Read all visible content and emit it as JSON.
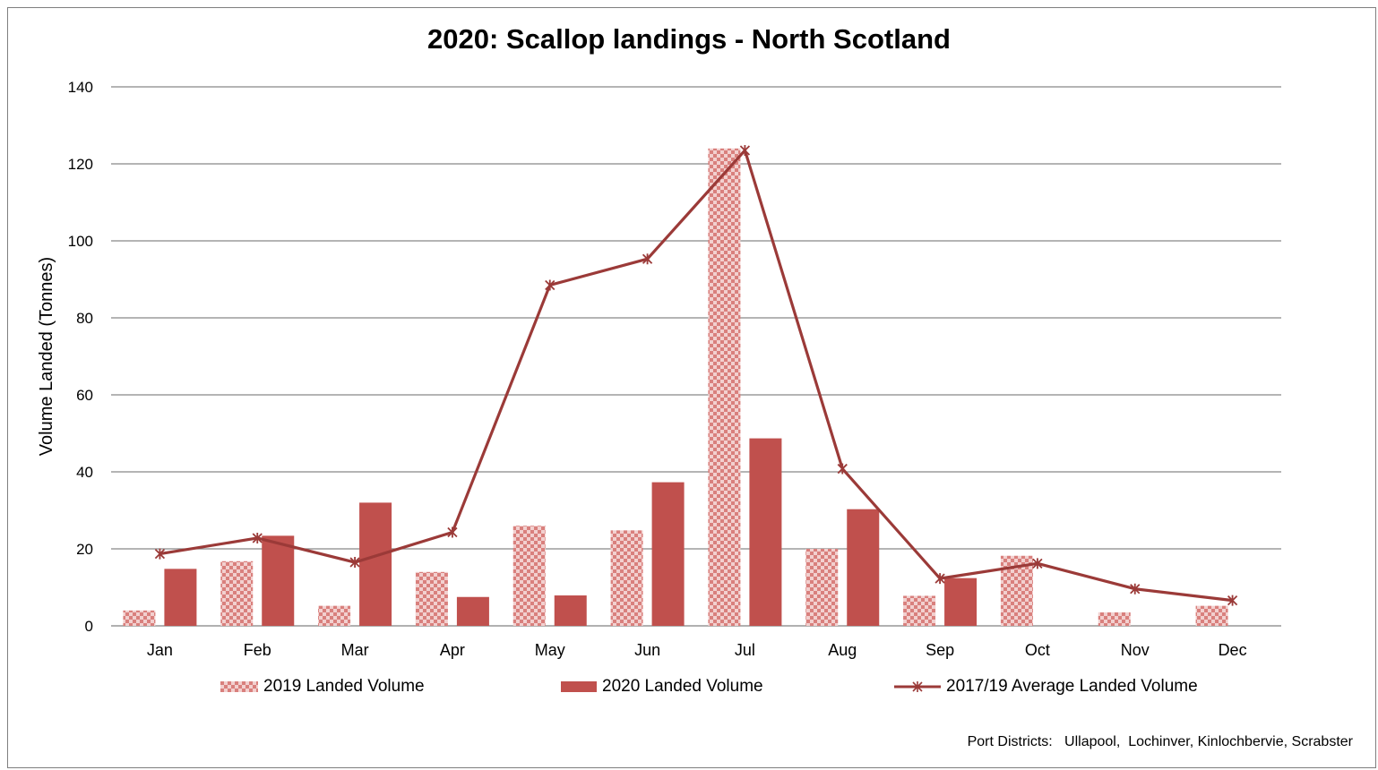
{
  "chart_data": {
    "type": "bar",
    "title": "2020: Scallop landings - North Scotland",
    "xlabel": "",
    "ylabel": "Volume Landed (Tonnes)",
    "ylim": [
      0,
      140
    ],
    "yticks": [
      0,
      20,
      40,
      60,
      80,
      100,
      120,
      140
    ],
    "grid": true,
    "legend_position": "bottom",
    "categories": [
      "Jan",
      "Feb",
      "Mar",
      "Apr",
      "May",
      "Jun",
      "Jul",
      "Aug",
      "Sep",
      "Oct",
      "Nov",
      "Dec"
    ],
    "series": [
      {
        "name": "2019  Landed Volume",
        "type": "bar",
        "style": "checkered",
        "color": "#c0504d",
        "values": [
          4,
          16.8,
          5.2,
          14,
          26,
          24.8,
          124,
          20,
          7.8,
          18.2,
          3.5,
          5.2
        ]
      },
      {
        "name": "2020 Landed Volume",
        "type": "bar",
        "style": "solid",
        "color": "#c0504d",
        "values": [
          14.8,
          23.4,
          32,
          7.5,
          7.9,
          37.3,
          48.7,
          30.3,
          12.4,
          0,
          0,
          0
        ]
      },
      {
        "name": "2017/19 Average Landed Volume",
        "type": "line",
        "marker": "star",
        "color": "#9b3a38",
        "values": [
          18.7,
          22.8,
          16.5,
          24.3,
          88.5,
          95.3,
          123.5,
          40.8,
          12.3,
          16.2,
          9.6,
          6.6
        ]
      }
    ]
  },
  "footnote": "Port Districts:   Ullapool,  Lochinver, Kinlochbervie, Scrabster"
}
